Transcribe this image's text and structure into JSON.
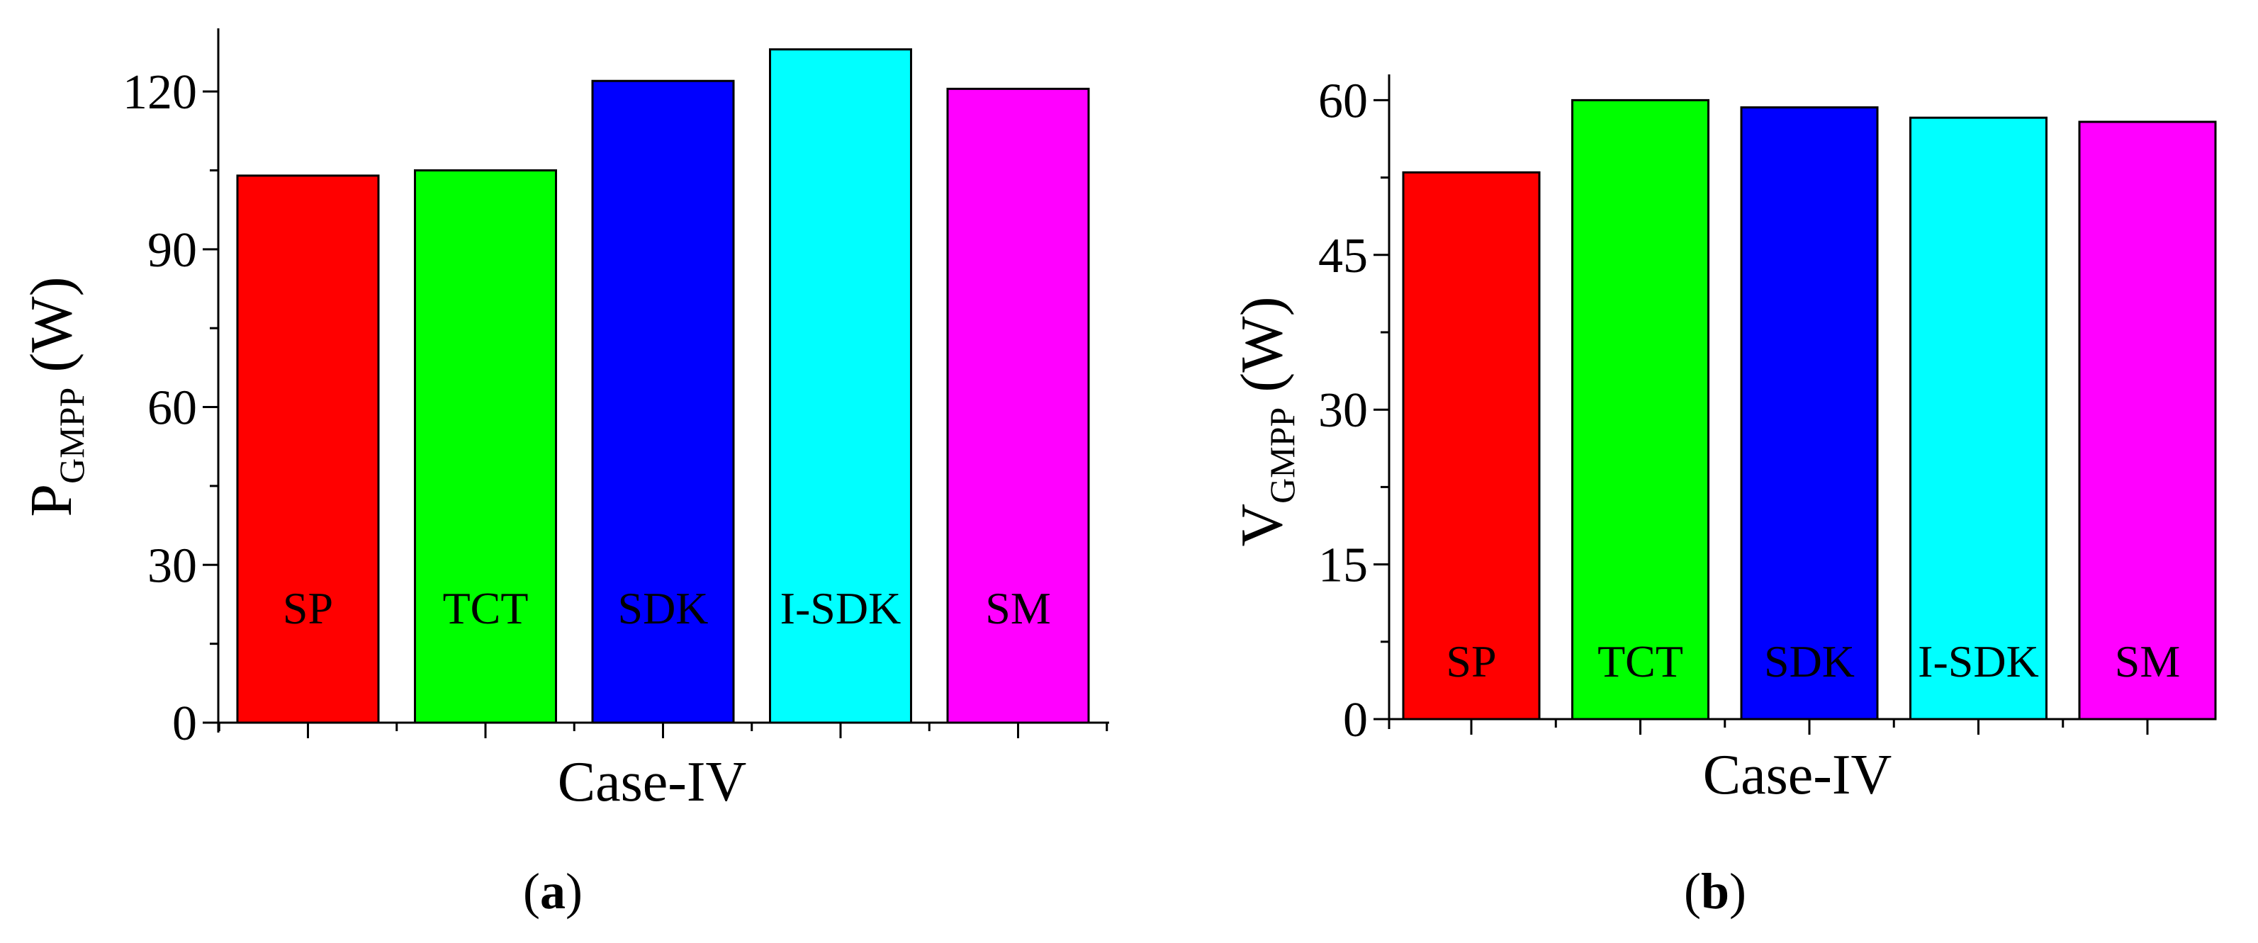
{
  "chart_data": [
    {
      "panel": "a",
      "type": "bar",
      "categories": [
        "SP",
        "TCT",
        "SDK",
        "I-SDK",
        "SM"
      ],
      "values": [
        104,
        105,
        122,
        128,
        120.5
      ],
      "colors": [
        "#ff0000",
        "#00ff00",
        "#0000ff",
        "#00ffff",
        "#ff00ff"
      ],
      "xlabel": "Case-IV",
      "ylabel_main": "P",
      "ylabel_sub": "GMPP",
      "ylabel_unit": "(W)",
      "yticks": [
        0,
        30,
        60,
        90,
        120
      ],
      "ylim": [
        0,
        132
      ],
      "grid": false,
      "caption_open": "(",
      "caption_letter": "a",
      "caption_close": ")"
    },
    {
      "panel": "b",
      "type": "bar",
      "categories": [
        "SP",
        "TCT",
        "SDK",
        "I-SDK",
        "SM"
      ],
      "values": [
        53,
        60,
        59.3,
        58.3,
        57.9
      ],
      "colors": [
        "#ff0000",
        "#00ff00",
        "#0000ff",
        "#00ffff",
        "#ff00ff"
      ],
      "xlabel": "Case-IV",
      "ylabel_main": "V",
      "ylabel_sub": "GMPP",
      "ylabel_unit": "(W)",
      "yticks": [
        0,
        15,
        30,
        45,
        60
      ],
      "ylim": [
        0,
        62.5
      ],
      "grid": false,
      "caption_open": "(",
      "caption_letter": "b",
      "caption_close": ")"
    }
  ]
}
